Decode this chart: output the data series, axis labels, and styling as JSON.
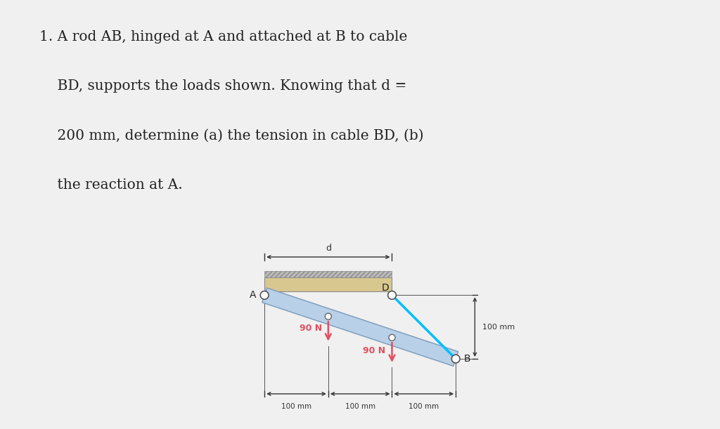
{
  "bg_color": "#f0f0f0",
  "text_color": "#222222",
  "problem_lines": [
    "1. A rod AB, hinged at A and attached at B to cable",
    "    BD, supports the loads shown. Knowing that d =",
    "    200 mm, determine (a) the tension in cable BD, (b)",
    "    the reaction at A."
  ],
  "rod_color": "#b8d0e8",
  "rod_edge_color": "#7a9ab8",
  "cable_color": "#00bfff",
  "load_color": "#e05060",
  "dim_color": "#333333",
  "ceiling_color": "#d8c890",
  "hatch_color": "#999999",
  "label_color": "#222222"
}
